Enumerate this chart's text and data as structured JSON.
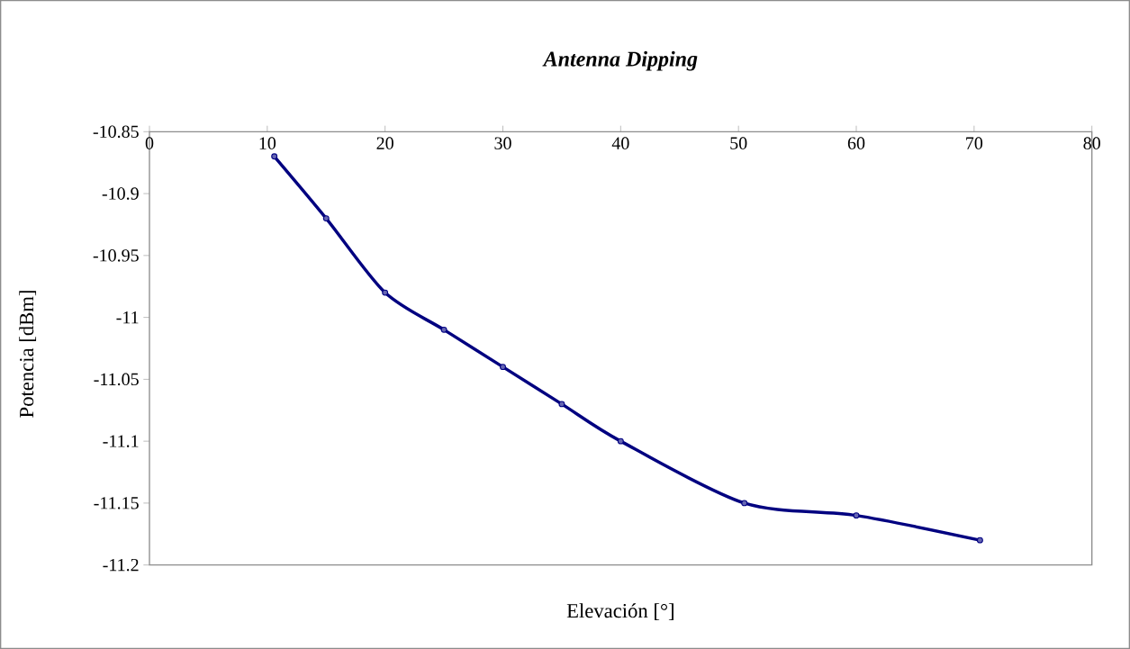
{
  "chart_data": {
    "type": "line",
    "title": "Antenna Dipping",
    "xlabel": "Elevación [°]",
    "ylabel": "Potencia [dBm]",
    "x": [
      10.6,
      15,
      20,
      25,
      30,
      35,
      40,
      50.5,
      60,
      70.5
    ],
    "values": [
      -10.87,
      -10.92,
      -10.98,
      -11.01,
      -11.04,
      -11.07,
      -11.1,
      -11.15,
      -11.16,
      -11.18
    ],
    "color": "#000080",
    "xlim": [
      0,
      80
    ],
    "xticks": [
      0,
      10,
      20,
      30,
      40,
      50,
      60,
      70,
      80
    ],
    "ylim": [
      -11.2,
      -10.85
    ],
    "yticks": [
      -11.2,
      -11.15,
      -11.1,
      -11.05,
      -11,
      -10.95,
      -10.9,
      -10.85
    ],
    "marker": "circle",
    "line_style": "solid"
  }
}
